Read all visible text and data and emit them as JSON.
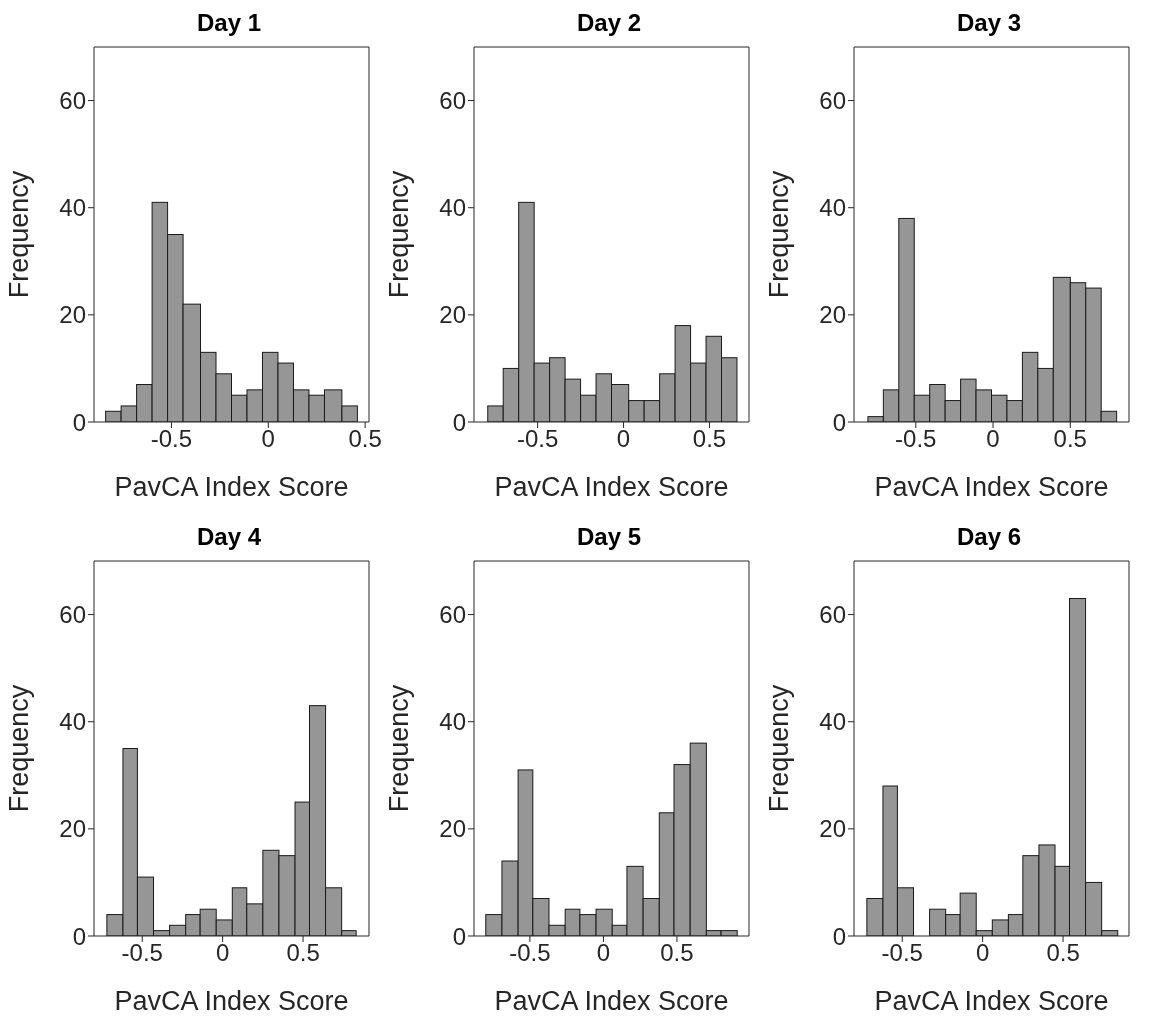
{
  "chart_data": [
    {
      "type": "histogram",
      "title": "Day 1",
      "xlabel": "PavCA Index Score",
      "ylabel": "Frequency",
      "color": "#969696",
      "bins": [
        -0.84,
        -0.76,
        -0.68,
        -0.6,
        -0.52,
        -0.44,
        -0.35,
        -0.27,
        -0.19,
        -0.11,
        -0.03,
        0.05,
        0.13,
        0.21,
        0.29,
        0.38,
        0.46
      ],
      "values": [
        2,
        3,
        7,
        41,
        35,
        22,
        13,
        9,
        5,
        6,
        13,
        11,
        6,
        5,
        6,
        3
      ],
      "xlim": [
        -0.9,
        0.52
      ],
      "xticks": [
        -0.5,
        0,
        0.5
      ],
      "ylim": [
        0,
        70
      ],
      "yticks": [
        0,
        20,
        40,
        60
      ]
    },
    {
      "type": "histogram",
      "title": "Day 2",
      "xlabel": "PavCA Index Score",
      "ylabel": "Frequency",
      "color": "#969696",
      "bins": [
        -0.79,
        -0.7,
        -0.61,
        -0.52,
        -0.43,
        -0.34,
        -0.25,
        -0.16,
        -0.07,
        0.03,
        0.12,
        0.21,
        0.3,
        0.39,
        0.48,
        0.57,
        0.66
      ],
      "values": [
        3,
        10,
        41,
        11,
        12,
        8,
        5,
        9,
        7,
        4,
        4,
        9,
        18,
        11,
        16,
        12
      ],
      "xlim": [
        -0.87,
        0.73
      ],
      "xticks": [
        -0.5,
        0,
        0.5
      ],
      "ylim": [
        0,
        70
      ],
      "yticks": [
        0,
        20,
        40,
        60
      ]
    },
    {
      "type": "histogram",
      "title": "Day 3",
      "xlabel": "PavCA Index Score",
      "ylabel": "Frequency",
      "color": "#969696",
      "bins": [
        -0.81,
        -0.71,
        -0.61,
        -0.51,
        -0.41,
        -0.31,
        -0.21,
        -0.11,
        -0.01,
        0.09,
        0.19,
        0.29,
        0.39,
        0.5,
        0.6,
        0.7,
        0.8
      ],
      "values": [
        1,
        6,
        38,
        5,
        7,
        4,
        8,
        6,
        5,
        4,
        13,
        10,
        27,
        26,
        25,
        2
      ],
      "xlim": [
        -0.9,
        0.88
      ],
      "xticks": [
        -0.5,
        0,
        0.5
      ],
      "ylim": [
        0,
        70
      ],
      "yticks": [
        0,
        20,
        40,
        60
      ]
    },
    {
      "type": "histogram",
      "title": "Day 4",
      "xlabel": "PavCA Index Score",
      "ylabel": "Frequency",
      "color": "#969696",
      "bins": [
        -0.72,
        -0.62,
        -0.53,
        -0.43,
        -0.33,
        -0.23,
        -0.14,
        -0.04,
        0.06,
        0.15,
        0.25,
        0.35,
        0.45,
        0.54,
        0.64,
        0.74,
        0.83
      ],
      "values": [
        4,
        35,
        11,
        1,
        2,
        4,
        5,
        3,
        9,
        6,
        16,
        15,
        25,
        43,
        9,
        1
      ],
      "xlim": [
        -0.8,
        0.91
      ],
      "xticks": [
        -0.5,
        0,
        0.5
      ],
      "ylim": [
        0,
        70
      ],
      "yticks": [
        0,
        20,
        40,
        60
      ]
    },
    {
      "type": "histogram",
      "title": "Day 5",
      "xlabel": "PavCA Index Score",
      "ylabel": "Frequency",
      "color": "#969696",
      "bins": [
        -0.8,
        -0.69,
        -0.58,
        -0.48,
        -0.37,
        -0.26,
        -0.16,
        -0.05,
        0.06,
        0.16,
        0.27,
        0.38,
        0.48,
        0.59,
        0.7,
        0.8,
        0.91
      ],
      "values": [
        4,
        14,
        31,
        7,
        2,
        5,
        4,
        5,
        2,
        13,
        7,
        23,
        32,
        36,
        1,
        1
      ],
      "xlim": [
        -0.88,
        0.99
      ],
      "xticks": [
        -0.5,
        0,
        0.5
      ],
      "ylim": [
        0,
        70
      ],
      "yticks": [
        0,
        20,
        40,
        60
      ]
    },
    {
      "type": "histogram",
      "title": "Day 6",
      "xlabel": "PavCA Index Score",
      "ylabel": "Frequency",
      "color": "#969696",
      "bins": [
        -0.72,
        -0.62,
        -0.53,
        -0.43,
        -0.33,
        -0.23,
        -0.14,
        -0.04,
        0.06,
        0.16,
        0.25,
        0.35,
        0.45,
        0.54,
        0.64,
        0.74,
        0.84
      ],
      "values": [
        7,
        28,
        9,
        0,
        5,
        4,
        8,
        1,
        3,
        4,
        15,
        17,
        13,
        63,
        10,
        1
      ],
      "xlim": [
        -0.8,
        0.91
      ],
      "xticks": [
        -0.5,
        0,
        0.5
      ],
      "ylim": [
        0,
        70
      ],
      "yticks": [
        0,
        20,
        40,
        60
      ]
    }
  ]
}
